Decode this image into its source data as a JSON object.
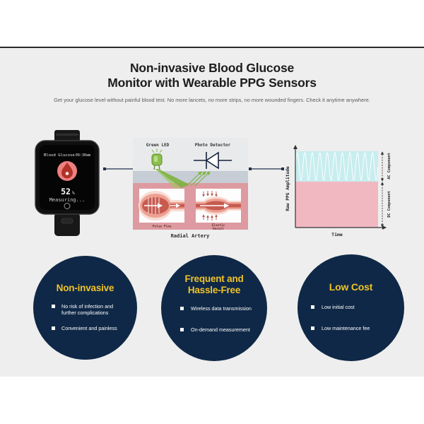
{
  "page": {
    "background": "#ffffff",
    "card_background": "#eeeeee",
    "divider_color": "#2b2b2b"
  },
  "header": {
    "title_line1": "Non-invasive Blood Glucose",
    "title_line2": "Monitor with Wearable PPG Sensors",
    "subtitle": "Get your glucose level without painful blood test. No more lancets, no more strips, no more wounded fingers. Check it anytime anywhere."
  },
  "watch": {
    "screen_title": "Blood Glucose",
    "time": "09:30am",
    "value": "52",
    "unit": "%",
    "status": "Measuring...",
    "icon": "blood-drop-icon",
    "drop_circle_color": "#ef8080",
    "drop_color": "#b03228"
  },
  "sensor_diagram": {
    "led_label": "Green LED",
    "detector_label": "Photo Detector",
    "inset_left_label": "Pulse Flow",
    "inset_right_label_line1": "Elastic",
    "inset_right_label_line2": "Recoil",
    "artery_label": "Radial Artery",
    "beam_color": "#7eb240",
    "skin_layer_color": "#c6cdd5",
    "tissue_color": "#dd9aa0"
  },
  "chart_data": {
    "type": "area",
    "title": "",
    "xlabel": "Time",
    "ylabel": "Raw PPG Amplitude",
    "x_range": [
      0,
      1
    ],
    "y_range": [
      0,
      1
    ],
    "grid": false,
    "legend": "none",
    "bands": [
      {
        "label": "AC Component",
        "y_from": 0.6,
        "y_to": 1.0,
        "fill": "#c8edef",
        "waveform": "sine",
        "cycles": 11,
        "wave_color": "#ffffff"
      },
      {
        "label": "DC Component",
        "y_from": 0.0,
        "y_to": 0.6,
        "fill": "#f1b8c2",
        "waveform": "flat"
      }
    ]
  },
  "benefits": [
    {
      "title_lines": [
        "Non-invasive"
      ],
      "bullets": [
        "No risk of infection and further complications",
        "Convenient and painless"
      ]
    },
    {
      "title_lines": [
        "Frequent and",
        "Hassle-Free"
      ],
      "bullets": [
        "Wireless data transmission",
        "On-demand measurement"
      ]
    },
    {
      "title_lines": [
        "Low Cost"
      ],
      "bullets": [
        "Low initial cost",
        "Low maintenance fee"
      ]
    }
  ],
  "theme": {
    "navy": "#0f2847",
    "gold": "#f0c326",
    "text_dark": "#1d1d1d",
    "text_gray": "#5b5b5b"
  }
}
